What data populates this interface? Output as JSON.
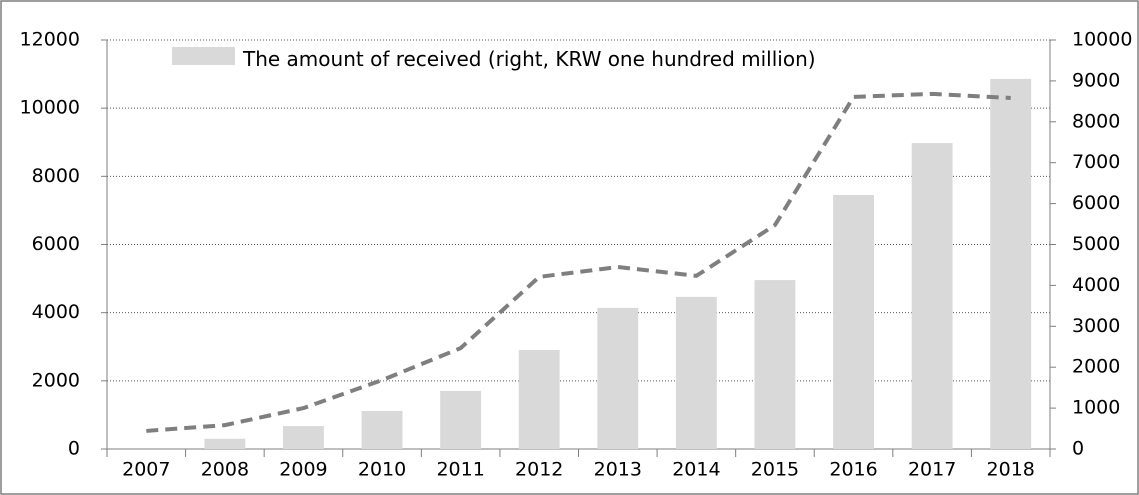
{
  "chart_data": {
    "type": "bar-line",
    "categories": [
      "2007",
      "2008",
      "2009",
      "2010",
      "2011",
      "2012",
      "2013",
      "2014",
      "2015",
      "2016",
      "2017",
      "2018"
    ],
    "series": [
      {
        "name": "The amount of received (right, KRW one hundred million)",
        "type": "bar",
        "axis": "y2",
        "color": "#d9d9d9",
        "values": [
          0,
          250,
          560,
          930,
          1420,
          2420,
          3450,
          3720,
          4130,
          6210,
          7480,
          9050
        ]
      },
      {
        "type": "line",
        "axis": "y",
        "color": "#7f7f7f",
        "dashed": true,
        "values": [
          530,
          700,
          1200,
          2020,
          2960,
          5050,
          5340,
          5080,
          6570,
          10330,
          10420,
          10300
        ]
      }
    ],
    "ylim": [
      0,
      12000
    ],
    "yticks": [
      0,
      2000,
      4000,
      6000,
      8000,
      10000,
      12000
    ],
    "y2lim": [
      0,
      10000
    ],
    "y2ticks": [
      0,
      1000,
      2000,
      3000,
      4000,
      5000,
      6000,
      7000,
      8000,
      9000,
      10000
    ],
    "grid": true,
    "legend": "top-left"
  }
}
